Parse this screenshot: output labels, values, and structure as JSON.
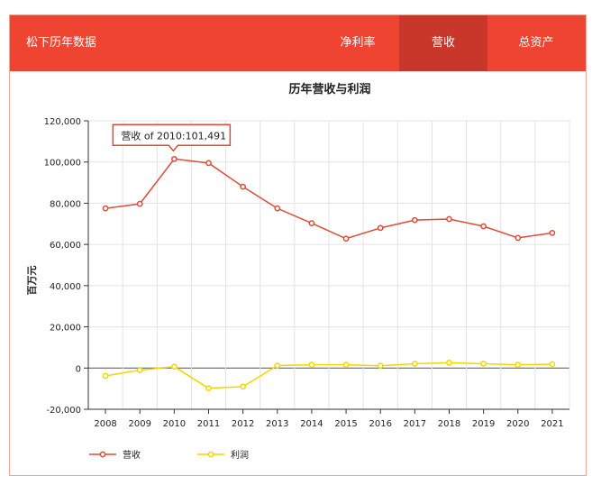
{
  "app": {
    "title": "松下历年数据",
    "tabs": [
      {
        "label": "净利率",
        "active": false
      },
      {
        "label": "营收",
        "active": true
      },
      {
        "label": "总资产",
        "active": false
      }
    ]
  },
  "colors": {
    "brand": "#ee4431",
    "active_tab": "#c9362a",
    "revenue": "#dd4b39",
    "profit": "#f2d600",
    "grid": "#e3e3e3"
  },
  "chart_data": {
    "type": "line",
    "title": "历年营收与利润",
    "ylabel": "百万元",
    "xlabel": "",
    "categories": [
      "2008",
      "2009",
      "2010",
      "2011",
      "2012",
      "2013",
      "2014",
      "2015",
      "2016",
      "2017",
      "2018",
      "2019",
      "2020",
      "2021"
    ],
    "ylim": [
      -20000,
      120000
    ],
    "yticks": [
      -20000,
      0,
      20000,
      40000,
      60000,
      80000,
      100000,
      120000
    ],
    "ytick_labels": [
      "-20,000",
      "0",
      "20,000",
      "40,000",
      "60,000",
      "80,000",
      "100,000",
      "120,000"
    ],
    "grid": true,
    "legend_position": "bottom-left",
    "series": [
      {
        "name": "营收",
        "color": "#dd4b39",
        "values": [
          77500,
          79700,
          101491,
          99500,
          88000,
          77500,
          70300,
          62800,
          68000,
          71800,
          72300,
          68800,
          63200,
          65600
        ]
      },
      {
        "name": "利润",
        "color": "#f2d600",
        "values": [
          -3800,
          -1000,
          700,
          -9800,
          -9000,
          1200,
          1600,
          1600,
          1100,
          2100,
          2600,
          2100,
          1600,
          1900
        ]
      }
    ],
    "tooltip": {
      "text": "营收 of 2010:101,491",
      "series": 0,
      "index": 2
    }
  }
}
